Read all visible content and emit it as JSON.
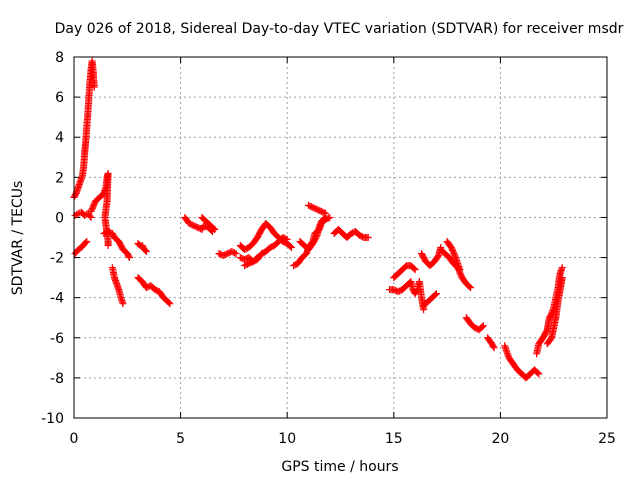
{
  "chart_data": {
    "type": "scatter",
    "title": "Day 026 of 2018, Sidereal Day-to-day VTEC variation (SDTVAR) for receiver msdr",
    "xlabel": "GPS time / hours",
    "ylabel": "SDTVAR / TECUs",
    "xlim": [
      0,
      25
    ],
    "ylim": [
      -10,
      8
    ],
    "xticks": [
      0,
      5,
      10,
      15,
      20,
      25
    ],
    "yticks": [
      -10,
      -8,
      -6,
      -4,
      -2,
      0,
      2,
      4,
      6,
      8
    ],
    "grid": true,
    "marker": "+",
    "color": "#ff0000",
    "series": [
      {
        "name": "SDTVAR",
        "segments": [
          [
            [
              0.0,
              1.0
            ],
            [
              0.1,
              1.2
            ],
            [
              0.2,
              1.5
            ],
            [
              0.3,
              1.8
            ],
            [
              0.4,
              2.1
            ],
            [
              0.45,
              2.5
            ],
            [
              0.5,
              3.2
            ],
            [
              0.55,
              3.8
            ],
            [
              0.6,
              4.5
            ],
            [
              0.65,
              5.2
            ],
            [
              0.7,
              6.0
            ],
            [
              0.75,
              6.8
            ],
            [
              0.8,
              7.4
            ],
            [
              0.85,
              7.8
            ],
            [
              0.9,
              7.3
            ],
            [
              0.95,
              6.5
            ]
          ],
          [
            [
              0.05,
              0.1
            ],
            [
              0.2,
              0.2
            ],
            [
              0.35,
              0.25
            ],
            [
              0.5,
              0.1
            ],
            [
              0.65,
              0.2
            ],
            [
              0.8,
              0.0
            ]
          ],
          [
            [
              0.05,
              -1.8
            ],
            [
              0.2,
              -1.6
            ],
            [
              0.35,
              -1.5
            ],
            [
              0.5,
              -1.3
            ],
            [
              0.6,
              -1.2
            ]
          ],
          [
            [
              0.8,
              0.3
            ],
            [
              1.0,
              0.8
            ],
            [
              1.2,
              1.0
            ],
            [
              1.4,
              1.2
            ],
            [
              1.5,
              1.5
            ],
            [
              1.55,
              2.0
            ],
            [
              1.6,
              2.2
            ],
            [
              1.55,
              0.8
            ],
            [
              1.5,
              0.4
            ],
            [
              1.45,
              0.0
            ],
            [
              1.5,
              -0.4
            ],
            [
              1.55,
              -0.8
            ],
            [
              1.6,
              -1.2
            ],
            [
              1.6,
              -1.4
            ]
          ],
          [
            [
              1.4,
              -0.8
            ],
            [
              1.6,
              -0.7
            ],
            [
              1.8,
              -0.8
            ],
            [
              1.9,
              -1.0
            ],
            [
              2.0,
              -1.1
            ],
            [
              2.1,
              -1.2
            ],
            [
              2.2,
              -1.4
            ],
            [
              2.3,
              -1.6
            ],
            [
              2.5,
              -1.8
            ],
            [
              2.6,
              -2.0
            ]
          ],
          [
            [
              1.8,
              -2.5
            ],
            [
              1.9,
              -3.0
            ],
            [
              2.0,
              -3.3
            ],
            [
              2.1,
              -3.6
            ],
            [
              2.2,
              -4.0
            ],
            [
              2.3,
              -4.3
            ]
          ],
          [
            [
              3.0,
              -1.3
            ],
            [
              3.1,
              -1.4
            ],
            [
              3.2,
              -1.4
            ],
            [
              3.3,
              -1.6
            ],
            [
              3.4,
              -1.7
            ]
          ],
          [
            [
              3.0,
              -3.0
            ],
            [
              3.2,
              -3.2
            ],
            [
              3.4,
              -3.5
            ],
            [
              3.6,
              -3.4
            ],
            [
              3.8,
              -3.6
            ],
            [
              4.0,
              -3.7
            ],
            [
              4.2,
              -4.0
            ],
            [
              4.4,
              -4.2
            ],
            [
              4.5,
              -4.3
            ]
          ],
          [
            [
              5.2,
              0.0
            ],
            [
              5.4,
              -0.3
            ],
            [
              5.6,
              -0.4
            ],
            [
              5.8,
              -0.5
            ],
            [
              6.0,
              -0.6
            ],
            [
              6.1,
              -0.4
            ],
            [
              6.3,
              -0.5
            ],
            [
              6.5,
              -0.7
            ]
          ],
          [
            [
              6.0,
              0.0
            ],
            [
              6.2,
              -0.2
            ],
            [
              6.4,
              -0.4
            ],
            [
              6.6,
              -0.6
            ]
          ],
          [
            [
              6.8,
              -1.8
            ],
            [
              7.0,
              -1.9
            ],
            [
              7.2,
              -1.8
            ],
            [
              7.4,
              -1.7
            ],
            [
              7.6,
              -1.8
            ]
          ],
          [
            [
              7.8,
              -2.0
            ],
            [
              8.0,
              -2.1
            ],
            [
              8.2,
              -2.0
            ],
            [
              8.4,
              -2.2
            ],
            [
              8.6,
              -2.1
            ],
            [
              8.8,
              -1.8
            ],
            [
              9.0,
              -1.7
            ],
            [
              9.2,
              -1.5
            ],
            [
              9.4,
              -1.4
            ],
            [
              9.6,
              -1.2
            ],
            [
              9.8,
              -1.0
            ],
            [
              10.0,
              -1.1
            ]
          ],
          [
            [
              7.8,
              -1.4
            ],
            [
              8.0,
              -1.6
            ],
            [
              8.2,
              -1.5
            ],
            [
              8.4,
              -1.3
            ],
            [
              8.6,
              -1.0
            ],
            [
              8.8,
              -0.6
            ],
            [
              9.0,
              -0.3
            ],
            [
              9.2,
              -0.5
            ],
            [
              9.4,
              -0.8
            ],
            [
              9.6,
              -1.0
            ],
            [
              9.8,
              -1.2
            ],
            [
              10.0,
              -1.3
            ],
            [
              10.2,
              -1.5
            ]
          ],
          [
            [
              8.0,
              -2.4
            ],
            [
              8.2,
              -2.3
            ],
            [
              8.4,
              -2.2
            ],
            [
              8.6,
              -2.0
            ]
          ],
          [
            [
              10.3,
              -2.4
            ],
            [
              10.5,
              -2.3
            ],
            [
              10.7,
              -2.0
            ],
            [
              10.9,
              -1.8
            ],
            [
              11.0,
              -1.5
            ],
            [
              11.2,
              -1.2
            ],
            [
              11.3,
              -0.8
            ],
            [
              11.5,
              -0.6
            ],
            [
              11.6,
              -0.3
            ],
            [
              11.8,
              -0.1
            ],
            [
              12.0,
              0.0
            ]
          ],
          [
            [
              10.6,
              -1.2
            ],
            [
              10.8,
              -1.4
            ],
            [
              11.0,
              -1.6
            ],
            [
              11.2,
              -1.3
            ],
            [
              11.4,
              -0.9
            ],
            [
              11.5,
              -0.5
            ],
            [
              11.6,
              -0.2
            ],
            [
              11.7,
              -0.1
            ],
            [
              11.8,
              0.0
            ]
          ],
          [
            [
              11.0,
              0.6
            ],
            [
              11.2,
              0.5
            ],
            [
              11.4,
              0.4
            ],
            [
              11.6,
              0.3
            ],
            [
              11.8,
              0.2
            ]
          ],
          [
            [
              12.2,
              -0.8
            ],
            [
              12.4,
              -0.6
            ],
            [
              12.6,
              -0.8
            ],
            [
              12.8,
              -1.0
            ],
            [
              13.0,
              -0.8
            ],
            [
              13.2,
              -0.7
            ],
            [
              13.4,
              -0.9
            ],
            [
              13.6,
              -1.0
            ],
            [
              13.8,
              -1.0
            ]
          ],
          [
            [
              14.8,
              -3.6
            ],
            [
              15.0,
              -3.6
            ],
            [
              15.2,
              -3.7
            ],
            [
              15.4,
              -3.6
            ],
            [
              15.6,
              -3.4
            ],
            [
              15.8,
              -3.2
            ],
            [
              15.9,
              -3.6
            ],
            [
              16.0,
              -3.8
            ],
            [
              16.1,
              -3.6
            ],
            [
              16.2,
              -3.2
            ],
            [
              16.3,
              -4.0
            ],
            [
              16.4,
              -4.6
            ]
          ],
          [
            [
              15.0,
              -3.0
            ],
            [
              15.2,
              -2.8
            ],
            [
              15.4,
              -2.6
            ],
            [
              15.6,
              -2.4
            ],
            [
              15.8,
              -2.4
            ],
            [
              16.0,
              -2.6
            ]
          ],
          [
            [
              16.3,
              -1.8
            ],
            [
              16.5,
              -2.2
            ],
            [
              16.7,
              -2.4
            ],
            [
              16.9,
              -2.2
            ],
            [
              17.1,
              -1.9
            ],
            [
              17.2,
              -1.5
            ]
          ],
          [
            [
              16.4,
              -4.4
            ],
            [
              16.6,
              -4.2
            ],
            [
              16.8,
              -4.0
            ],
            [
              17.0,
              -3.8
            ]
          ],
          [
            [
              17.2,
              -1.6
            ],
            [
              17.4,
              -1.8
            ],
            [
              17.6,
              -2.0
            ],
            [
              17.8,
              -2.3
            ],
            [
              18.0,
              -2.5
            ],
            [
              18.2,
              -3.0
            ],
            [
              18.4,
              -3.3
            ],
            [
              18.6,
              -3.5
            ]
          ],
          [
            [
              17.5,
              -1.2
            ],
            [
              17.7,
              -1.5
            ],
            [
              17.9,
              -2.0
            ],
            [
              18.1,
              -2.6
            ]
          ],
          [
            [
              18.4,
              -5.0
            ],
            [
              18.6,
              -5.3
            ],
            [
              18.8,
              -5.5
            ],
            [
              19.0,
              -5.6
            ],
            [
              19.2,
              -5.4
            ]
          ],
          [
            [
              19.4,
              -6.0
            ],
            [
              19.6,
              -6.3
            ],
            [
              19.7,
              -6.5
            ]
          ],
          [
            [
              20.2,
              -6.4
            ],
            [
              20.4,
              -7.0
            ],
            [
              20.6,
              -7.3
            ],
            [
              20.8,
              -7.6
            ],
            [
              21.0,
              -7.8
            ],
            [
              21.2,
              -8.0
            ],
            [
              21.4,
              -7.8
            ],
            [
              21.6,
              -7.6
            ],
            [
              21.8,
              -7.8
            ]
          ],
          [
            [
              21.7,
              -6.8
            ],
            [
              21.8,
              -6.3
            ],
            [
              22.0,
              -6.0
            ],
            [
              22.1,
              -5.8
            ],
            [
              22.2,
              -5.6
            ],
            [
              22.3,
              -5.0
            ],
            [
              22.4,
              -4.8
            ],
            [
              22.5,
              -4.5
            ],
            [
              22.6,
              -4.0
            ],
            [
              22.7,
              -3.5
            ],
            [
              22.8,
              -2.8
            ],
            [
              22.9,
              -2.5
            ]
          ],
          [
            [
              22.2,
              -6.3
            ],
            [
              22.4,
              -6.0
            ],
            [
              22.6,
              -5.0
            ],
            [
              22.7,
              -4.2
            ],
            [
              22.8,
              -3.6
            ],
            [
              22.9,
              -3.0
            ]
          ]
        ]
      }
    ]
  }
}
